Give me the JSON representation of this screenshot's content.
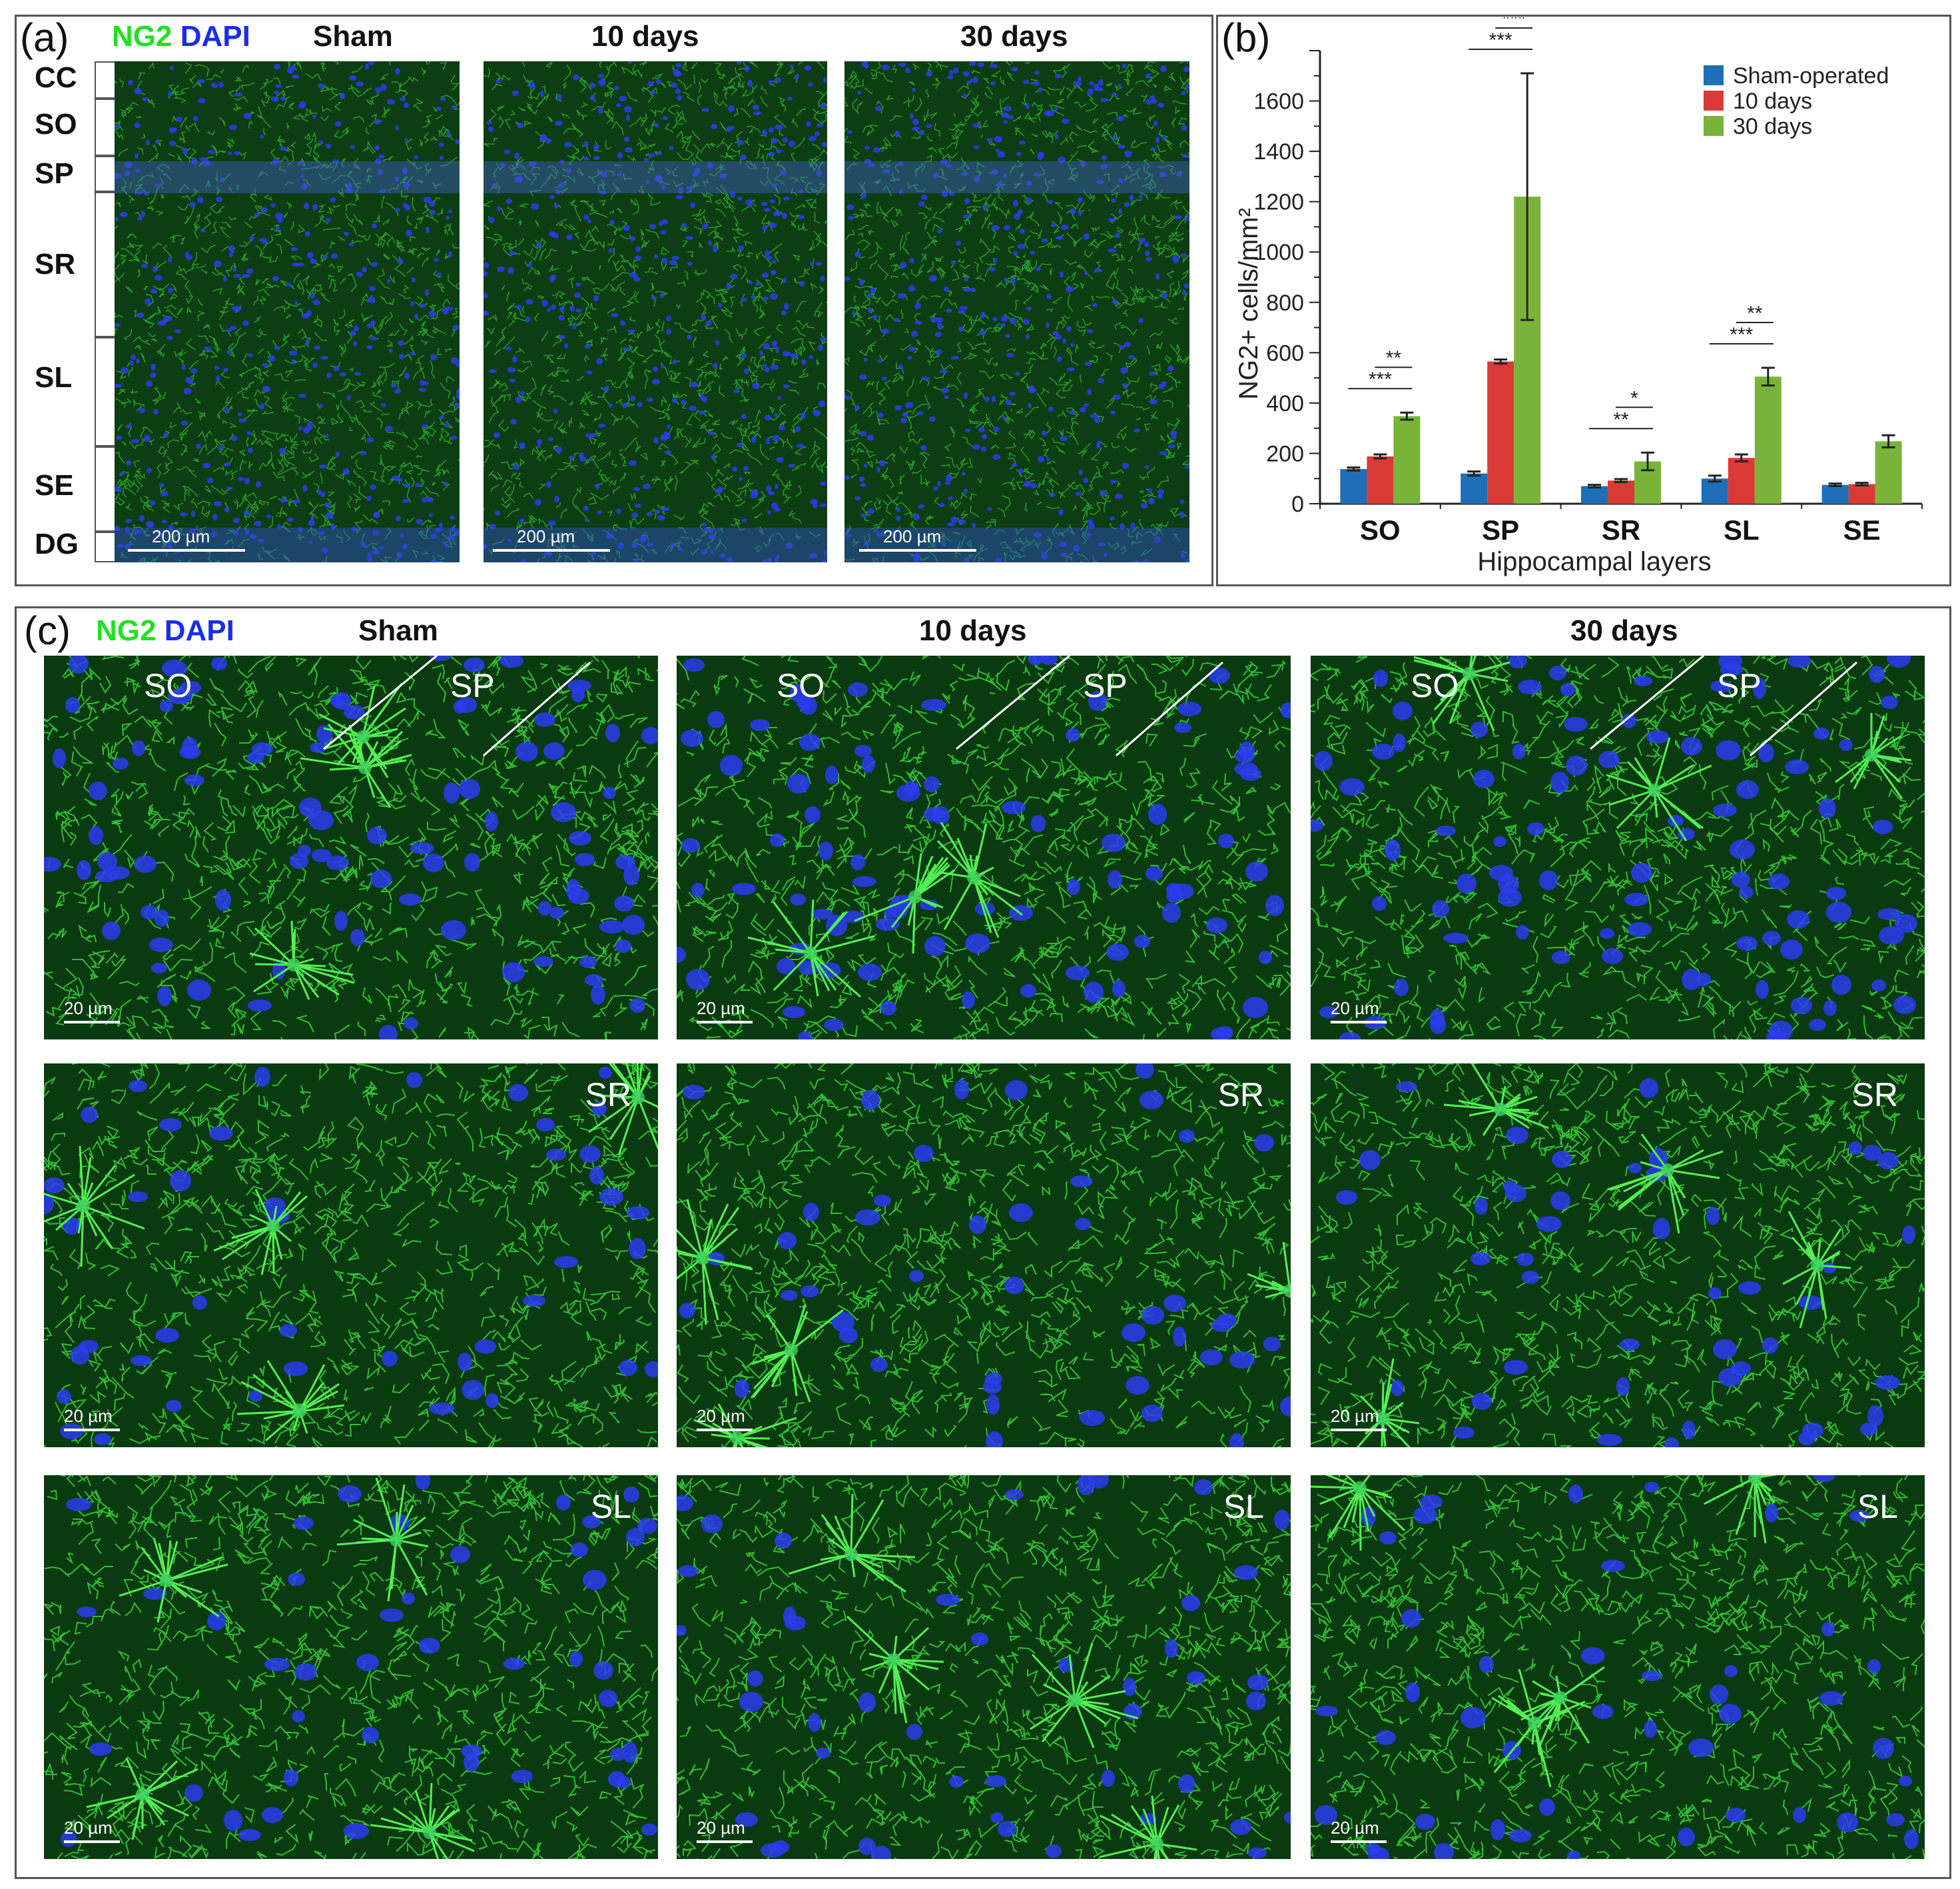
{
  "panel_a": {
    "label": "(a)",
    "stain_ng2": "NG2",
    "stain_dapi": "DAPI",
    "columns": [
      "Sham",
      "10 days",
      "30 days"
    ],
    "layers": [
      "CC",
      "SO",
      "SP",
      "SR",
      "SL",
      "SE",
      "DG"
    ],
    "scale_text": "200 µm"
  },
  "panel_b": {
    "label": "(b)"
  },
  "panel_c": {
    "label": "(c)",
    "stain_ng2": "NG2",
    "stain_dapi": "DAPI",
    "columns": [
      "Sham",
      "10 days",
      "30 days"
    ],
    "row1_labels": [
      "SO",
      "SP"
    ],
    "row2_label": "SR",
    "row3_label": "SL",
    "scale_text": "20 µm"
  },
  "colors": {
    "ng2_green": "#22e022",
    "dapi_blue": "#1a2ee8",
    "sham": "#1f6fb8",
    "ten_days": "#d93a35",
    "thirty_days": "#7ab33a"
  },
  "chart_data": {
    "type": "bar",
    "xlabel": "Hippocampal layers",
    "ylabel": "NG2+ cells/mm²",
    "categories": [
      "SO",
      "SP",
      "SR",
      "SL",
      "SE"
    ],
    "ylim": [
      0,
      1800
    ],
    "yticks": [
      0,
      200,
      400,
      600,
      800,
      1000,
      1200,
      1400,
      1600
    ],
    "legend_position": "top-right",
    "series": [
      {
        "name": "Sham-operated",
        "color": "#1f6fb8",
        "values": [
          138,
          120,
          70,
          100,
          75
        ],
        "errors": [
          6,
          8,
          5,
          12,
          5
        ]
      },
      {
        "name": "10 days",
        "color": "#d93a35",
        "values": [
          188,
          565,
          92,
          182,
          78
        ],
        "errors": [
          8,
          8,
          6,
          14,
          5
        ]
      },
      {
        "name": "30 days",
        "color": "#7ab33a",
        "values": [
          348,
          1220,
          168,
          505,
          248
        ],
        "errors": [
          14,
          490,
          35,
          35,
          24
        ]
      }
    ],
    "significance": [
      {
        "category": "SO",
        "text": "***",
        "from": 0,
        "to": 2
      },
      {
        "category": "SO",
        "text": "**",
        "from": 1,
        "to": 2
      },
      {
        "category": "SP",
        "text": "***",
        "from": 0,
        "to": 2
      },
      {
        "category": "SP",
        "text": "***",
        "from": 1,
        "to": 2
      },
      {
        "category": "SP",
        "text": "***",
        "from": 0,
        "to": 1
      },
      {
        "category": "SR",
        "text": "**",
        "from": 0,
        "to": 2
      },
      {
        "category": "SR",
        "text": "*",
        "from": 1,
        "to": 2
      },
      {
        "category": "SL",
        "text": "***",
        "from": 0,
        "to": 2
      },
      {
        "category": "SL",
        "text": "**",
        "from": 1,
        "to": 2
      }
    ]
  }
}
